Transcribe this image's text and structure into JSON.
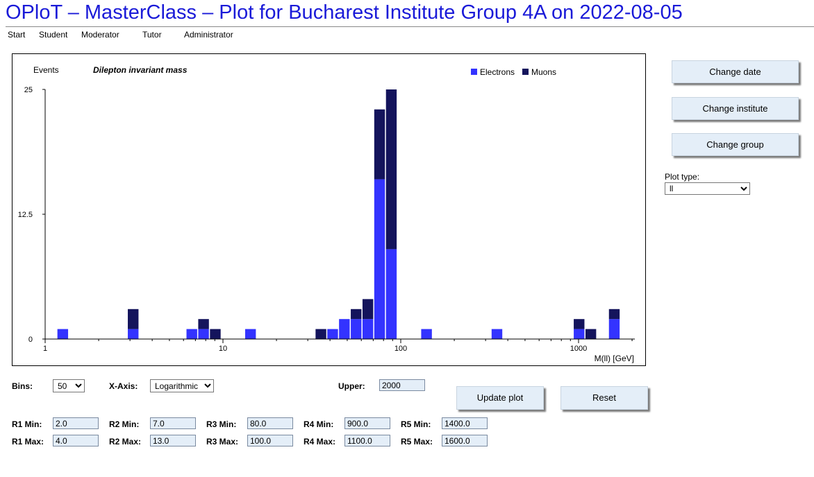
{
  "header": {
    "title": "OPloT – MasterClass – Plot for Bucharest Institute Group 4A on 2022-08-05",
    "nav": [
      "Start",
      "Student",
      "Moderator",
      "Tutor",
      "Administrator"
    ]
  },
  "sidebar": {
    "change_date": "Change date",
    "change_institute": "Change institute",
    "change_group": "Change group",
    "plot_type_label": "Plot type:",
    "plot_type_value": "ll"
  },
  "controls": {
    "bins_label": "Bins:",
    "bins_value": "50",
    "xaxis_label": "X-Axis:",
    "xaxis_value": "Logarithmic",
    "upper_label": "Upper:",
    "upper_value": "2000",
    "update_label": "Update plot",
    "reset_label": "Reset",
    "ranges": [
      {
        "min_label": "R1 Min:",
        "min": "2.0",
        "max_label": "R1 Max:",
        "max": "4.0"
      },
      {
        "min_label": "R2 Min:",
        "min": "7.0",
        "max_label": "R2 Max:",
        "max": "13.0"
      },
      {
        "min_label": "R3 Min:",
        "min": "80.0",
        "max_label": "R3 Max:",
        "max": "100.0"
      },
      {
        "min_label": "R4 Min:",
        "min": "900.0",
        "max_label": "R4 Max:",
        "max": "1100.0"
      },
      {
        "min_label": "R5 Min:",
        "min": "1400.0",
        "max_label": "R5 Max:",
        "max": "1600.0"
      }
    ]
  },
  "colors": {
    "title": "#1a1ad8",
    "electrons": "#3333ff",
    "muons": "#14145c",
    "button_bg": "#e4eef8"
  },
  "chart_data": {
    "type": "bar",
    "stacked": true,
    "title": "Dilepton invariant mass",
    "ylabel": "Events",
    "xlabel": "M(ll) [GeV]",
    "xscale": "log",
    "xlim": [
      1,
      2000
    ],
    "ylim": [
      0,
      25
    ],
    "yticks": [
      "0",
      "12.5",
      "25"
    ],
    "xticks": [
      {
        "value": 1,
        "label": "1"
      },
      {
        "value": 10,
        "label": "10"
      },
      {
        "value": 100,
        "label": "100"
      },
      {
        "value": 1000,
        "label": "1000"
      }
    ],
    "legend_position": "top-right",
    "bin_edges_log10": [
      0.0,
      0.066,
      0.132,
      0.198,
      0.264,
      0.33,
      0.396,
      0.462,
      0.528,
      0.594,
      0.66,
      0.726,
      0.792,
      0.858,
      0.924,
      0.99,
      1.056,
      1.122,
      1.188,
      1.254,
      1.32,
      1.386,
      1.452,
      1.518,
      1.584,
      1.65,
      1.716,
      1.782,
      1.848,
      1.914,
      1.98,
      2.046,
      2.112,
      2.178,
      2.244,
      2.31,
      2.376,
      2.442,
      2.508,
      2.574,
      2.64,
      2.706,
      2.772,
      2.838,
      2.904,
      2.97,
      3.036,
      3.102,
      3.168,
      3.234,
      3.3
    ],
    "series": [
      {
        "name": "Electrons",
        "values": [
          0,
          1,
          0,
          0,
          0,
          0,
          0,
          1,
          0,
          0,
          0,
          0,
          1,
          1,
          0,
          0,
          0,
          1,
          0,
          0,
          0,
          0,
          0,
          0,
          1,
          2,
          2,
          2,
          16,
          9,
          0,
          0,
          1,
          0,
          0,
          0,
          0,
          0,
          1,
          0,
          0,
          0,
          0,
          0,
          0,
          1,
          0,
          0,
          2,
          0
        ]
      },
      {
        "name": "Muons",
        "values": [
          0,
          0,
          0,
          0,
          0,
          0,
          0,
          2,
          0,
          0,
          0,
          0,
          0,
          1,
          1,
          0,
          0,
          0,
          0,
          0,
          0,
          0,
          0,
          1,
          0,
          0,
          1,
          2,
          7,
          16,
          0,
          0,
          0,
          0,
          0,
          0,
          0,
          0,
          0,
          0,
          0,
          0,
          0,
          0,
          0,
          1,
          1,
          0,
          1,
          0
        ]
      }
    ]
  }
}
